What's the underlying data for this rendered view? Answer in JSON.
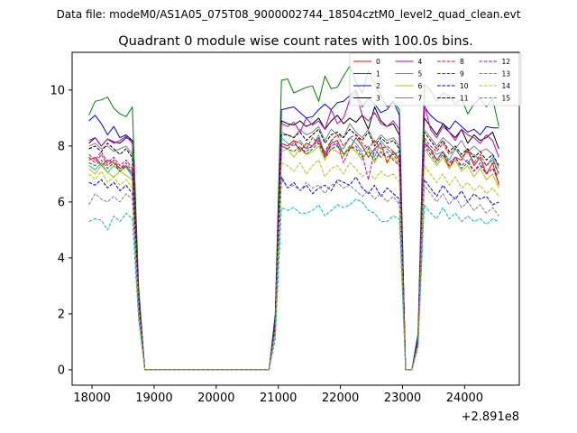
{
  "suptitle": "Data file: modeM0/AS1A05_075T08_9000002744_18504cztM0_level2_quad_clean.evt",
  "chart_data": {
    "type": "line",
    "title": "Quadrant 0 module wise count rates with 100.0s bins.",
    "xlabel": "",
    "ylabel": "",
    "x_offset_label": "+2.891e8",
    "xlim": [
      17680,
      24880
    ],
    "ylim": [
      -0.55,
      11.35
    ],
    "x_ticks": [
      18000,
      19000,
      20000,
      21000,
      22000,
      23000,
      24000
    ],
    "y_ticks": [
      0,
      2,
      4,
      6,
      8,
      10
    ],
    "legend_position": "top-right",
    "legend_columns": 4,
    "x": [
      17950,
      18050,
      18150,
      18250,
      18350,
      18450,
      18550,
      18650,
      18750,
      18850,
      18950,
      19050,
      19150,
      19250,
      19350,
      19450,
      19550,
      19650,
      19750,
      19850,
      19950,
      20050,
      20150,
      20250,
      20350,
      20450,
      20550,
      20650,
      20750,
      20850,
      20950,
      21050,
      21150,
      21250,
      21350,
      21450,
      21550,
      21650,
      21750,
      21850,
      21950,
      22050,
      22150,
      22250,
      22350,
      22450,
      22550,
      22650,
      22750,
      22850,
      22950,
      23050,
      23150,
      23250,
      23350,
      23450,
      23550,
      23650,
      23750,
      23850,
      23950,
      24050,
      24150,
      24250,
      24350,
      24450,
      24550
    ],
    "series": [
      {
        "name": "0",
        "color": "#ff0000",
        "dash": "solid",
        "values": [
          7.5,
          7.6,
          7.3,
          7.5,
          7.4,
          7.2,
          7.3,
          7.0,
          2.4,
          0,
          0,
          0,
          0,
          0,
          0,
          0,
          0,
          0,
          0,
          0,
          0,
          0,
          0,
          0,
          0,
          0,
          0,
          0,
          0,
          0,
          1.6,
          8.1,
          8.0,
          8.2,
          7.8,
          8.1,
          8.0,
          8.3,
          7.6,
          8.1,
          8.2,
          7.7,
          7.9,
          8.3,
          8.0,
          7.6,
          7.9,
          8.1,
          7.4,
          7.8,
          7.5,
          0,
          0,
          1.1,
          8.1,
          7.9,
          7.5,
          7.8,
          7.2,
          7.6,
          7.5,
          7.9,
          7.3,
          7.6,
          7.0,
          7.4,
          6.6
        ]
      },
      {
        "name": "1",
        "color": "#008000",
        "dash": "solid",
        "values": [
          9.1,
          9.6,
          9.65,
          9.75,
          9.35,
          9.15,
          9.05,
          9.4,
          3.0,
          0,
          0,
          0,
          0,
          0,
          0,
          0,
          0,
          0,
          0,
          0,
          0,
          0,
          0,
          0,
          0,
          0,
          0,
          0,
          0,
          0,
          2.0,
          10.35,
          10.4,
          9.9,
          10.0,
          10.1,
          10.15,
          9.6,
          10.5,
          10.05,
          10.1,
          10.5,
          10.85,
          10.3,
          9.9,
          10.7,
          10.2,
          9.8,
          9.4,
          9.6,
          9.3,
          0,
          0,
          1.3,
          10.2,
          10.0,
          9.6,
          9.9,
          9.8,
          9.5,
          9.7,
          9.15,
          9.5,
          9.7,
          9.4,
          9.7,
          8.7
        ]
      },
      {
        "name": "2",
        "color": "#0000ff",
        "dash": "solid",
        "values": [
          8.9,
          9.1,
          8.8,
          8.4,
          8.7,
          8.3,
          8.4,
          8.2,
          2.7,
          0,
          0,
          0,
          0,
          0,
          0,
          0,
          0,
          0,
          0,
          0,
          0,
          0,
          0,
          0,
          0,
          0,
          0,
          0,
          0,
          0,
          1.8,
          9.3,
          9.35,
          9.4,
          9.2,
          9.0,
          9.05,
          9.3,
          9.5,
          9.3,
          9.55,
          9.6,
          9.8,
          10.0,
          9.4,
          9.7,
          9.5,
          9.2,
          9.3,
          9.6,
          9.1,
          0,
          0,
          1.2,
          9.4,
          9.1,
          8.9,
          8.8,
          8.6,
          8.9,
          8.7,
          8.5,
          8.6,
          8.4,
          8.7,
          8.65,
          8.65
        ]
      },
      {
        "name": "3",
        "color": "#000000",
        "dash": "solid",
        "values": [
          8.1,
          8.3,
          8.0,
          8.25,
          8.15,
          8.1,
          8.3,
          8.2,
          2.7,
          0,
          0,
          0,
          0,
          0,
          0,
          0,
          0,
          0,
          0,
          0,
          0,
          0,
          0,
          0,
          0,
          0,
          0,
          0,
          0,
          0,
          1.7,
          8.9,
          8.8,
          8.75,
          8.9,
          8.7,
          8.8,
          9.0,
          8.6,
          8.9,
          9.1,
          8.8,
          9.0,
          8.85,
          9.1,
          8.6,
          9.4,
          8.9,
          8.7,
          8.8,
          8.4,
          0,
          0,
          1.1,
          9.0,
          8.7,
          8.4,
          8.8,
          8.5,
          8.3,
          8.6,
          8.1,
          8.4,
          8.2,
          8.3,
          8.5,
          7.9
        ]
      },
      {
        "name": "4",
        "color": "#bf00bf",
        "dash": "solid",
        "values": [
          8.2,
          8.3,
          8.0,
          8.25,
          8.1,
          8.2,
          8.35,
          8.1,
          2.7,
          0,
          0,
          0,
          0,
          0,
          0,
          0,
          0,
          0,
          0,
          0,
          0,
          0,
          0,
          0,
          0,
          0,
          0,
          0,
          0,
          0,
          1.7,
          8.8,
          8.7,
          8.85,
          8.5,
          9.0,
          8.75,
          8.9,
          8.6,
          9.3,
          8.8,
          9.0,
          9.65,
          9.9,
          9.1,
          8.9,
          9.2,
          8.8,
          8.7,
          8.9,
          8.6,
          0,
          0,
          1.1,
          9.5,
          8.6,
          8.3,
          8.7,
          8.5,
          8.2,
          8.6,
          8.4,
          8.3,
          8.1,
          8.4,
          8.2,
          7.6
        ]
      },
      {
        "name": "5",
        "color": "#00bfbf",
        "dash": "solid",
        "values": [
          7.3,
          7.15,
          7.4,
          7.05,
          7.3,
          7.1,
          7.25,
          6.9,
          2.4,
          0,
          0,
          0,
          0,
          0,
          0,
          0,
          0,
          0,
          0,
          0,
          0,
          0,
          0,
          0,
          0,
          0,
          0,
          0,
          0,
          0,
          1.6,
          8.3,
          8.1,
          8.0,
          8.2,
          7.9,
          8.0,
          8.4,
          7.7,
          8.2,
          8.0,
          7.9,
          8.3,
          8.1,
          7.8,
          8.0,
          7.6,
          8.2,
          7.9,
          7.7,
          7.8,
          0,
          0,
          1.1,
          8.2,
          7.9,
          7.7,
          7.8,
          7.5,
          7.9,
          7.6,
          7.4,
          7.7,
          7.5,
          7.3,
          7.6,
          7.0
        ]
      },
      {
        "name": "6",
        "color": "#bfbf00",
        "dash": "solid",
        "values": [
          7.2,
          7.0,
          7.3,
          7.05,
          6.9,
          7.1,
          6.95,
          6.8,
          2.3,
          0,
          0,
          0,
          0,
          0,
          0,
          0,
          0,
          0,
          0,
          0,
          0,
          0,
          0,
          0,
          0,
          0,
          0,
          0,
          0,
          0,
          1.5,
          7.8,
          7.9,
          7.6,
          7.9,
          7.7,
          7.8,
          8.0,
          7.5,
          7.9,
          7.8,
          7.6,
          8.0,
          7.8,
          7.5,
          7.9,
          7.4,
          7.8,
          7.5,
          7.6,
          7.3,
          0,
          0,
          1.0,
          7.9,
          7.6,
          7.3,
          7.6,
          7.2,
          7.5,
          7.1,
          7.3,
          6.9,
          7.2,
          6.8,
          7.0,
          6.5
        ]
      },
      {
        "name": "7",
        "color": "#808080",
        "dash": "solid",
        "values": [
          8.0,
          8.1,
          7.9,
          8.0,
          7.8,
          7.9,
          8.0,
          7.7,
          2.6,
          0,
          0,
          0,
          0,
          0,
          0,
          0,
          0,
          0,
          0,
          0,
          0,
          0,
          0,
          0,
          0,
          0,
          0,
          0,
          0,
          0,
          1.6,
          8.5,
          8.4,
          8.3,
          8.6,
          8.4,
          8.5,
          8.7,
          8.2,
          8.6,
          8.4,
          8.3,
          8.8,
          8.5,
          8.3,
          8.6,
          8.1,
          8.4,
          8.2,
          8.3,
          8.0,
          0,
          0,
          1.1,
          8.6,
          8.3,
          8.0,
          8.3,
          8.1,
          7.9,
          8.2,
          7.8,
          8.0,
          7.8,
          7.9,
          7.7,
          7.2
        ]
      },
      {
        "name": "8",
        "color": "#ff0000",
        "dash": "dashed",
        "values": [
          7.6,
          7.4,
          7.7,
          7.3,
          7.5,
          7.2,
          7.4,
          7.1,
          2.4,
          0,
          0,
          0,
          0,
          0,
          0,
          0,
          0,
          0,
          0,
          0,
          0,
          0,
          0,
          0,
          0,
          0,
          0,
          0,
          0,
          0,
          1.6,
          8.1,
          8.0,
          8.2,
          8.1,
          7.9,
          8.3,
          8.1,
          7.8,
          8.2,
          8.4,
          8.0,
          8.3,
          8.4,
          8.1,
          7.9,
          8.2,
          7.9,
          8.0,
          7.8,
          7.6,
          0,
          0,
          1.1,
          8.3,
          8.0,
          7.8,
          8.1,
          7.7,
          7.9,
          7.6,
          7.8,
          7.4,
          7.7,
          7.3,
          7.5,
          7.0
        ]
      },
      {
        "name": "9",
        "color": "#008000",
        "dash": "dashed",
        "values": [
          7.4,
          7.3,
          7.5,
          7.2,
          7.4,
          7.1,
          7.3,
          7.0,
          2.4,
          0,
          0,
          0,
          0,
          0,
          0,
          0,
          0,
          0,
          0,
          0,
          0,
          0,
          0,
          0,
          0,
          0,
          0,
          0,
          0,
          0,
          1.5,
          8.0,
          7.9,
          7.8,
          8.0,
          7.7,
          7.9,
          8.1,
          7.6,
          7.9,
          8.0,
          7.7,
          8.0,
          7.9,
          7.6,
          7.8,
          7.5,
          7.8,
          7.6,
          7.7,
          7.4,
          0,
          0,
          1.0,
          8.0,
          7.7,
          7.4,
          7.7,
          7.3,
          7.6,
          7.2,
          7.4,
          7.1,
          7.3,
          7.0,
          7.2,
          6.7
        ]
      },
      {
        "name": "10",
        "color": "#0000ff",
        "dash": "dashed",
        "values": [
          6.7,
          6.6,
          6.8,
          6.5,
          6.7,
          6.4,
          6.6,
          6.3,
          2.2,
          0,
          0,
          0,
          0,
          0,
          0,
          0,
          0,
          0,
          0,
          0,
          0,
          0,
          0,
          0,
          0,
          0,
          0,
          0,
          0,
          0,
          1.4,
          6.9,
          6.5,
          6.7,
          6.4,
          6.6,
          6.3,
          6.5,
          6.6,
          6.4,
          6.8,
          6.7,
          6.6,
          6.9,
          6.5,
          6.3,
          6.6,
          6.2,
          6.5,
          6.3,
          6.1,
          0,
          0,
          0.9,
          6.8,
          6.5,
          6.2,
          6.6,
          6.3,
          6.1,
          6.4,
          6.0,
          6.3,
          6.1,
          6.2,
          5.9,
          6.0
        ]
      },
      {
        "name": "11",
        "color": "#000000",
        "dash": "dashed",
        "values": [
          7.9,
          8.0,
          7.8,
          8.1,
          7.9,
          7.7,
          7.9,
          7.6,
          2.6,
          0,
          0,
          0,
          0,
          0,
          0,
          0,
          0,
          0,
          0,
          0,
          0,
          0,
          0,
          0,
          0,
          0,
          0,
          0,
          0,
          0,
          1.6,
          8.4,
          8.4,
          8.3,
          8.5,
          8.2,
          8.4,
          8.6,
          8.1,
          8.4,
          8.5,
          8.3,
          8.6,
          8.4,
          8.2,
          8.5,
          8.0,
          8.3,
          8.1,
          8.2,
          7.9,
          0,
          0,
          1.1,
          8.5,
          8.2,
          7.9,
          8.2,
          7.8,
          8.0,
          7.7,
          7.9,
          7.6,
          7.8,
          7.5,
          7.7,
          7.3
        ]
      },
      {
        "name": "12",
        "color": "#bf00bf",
        "dash": "dashed",
        "values": [
          7.7,
          7.5,
          7.8,
          7.4,
          7.6,
          7.3,
          7.5,
          7.2,
          2.5,
          0,
          0,
          0,
          0,
          0,
          0,
          0,
          0,
          0,
          0,
          0,
          0,
          0,
          0,
          0,
          0,
          0,
          0,
          0,
          0,
          0,
          1.6,
          8.0,
          7.9,
          8.1,
          7.9,
          7.8,
          8.0,
          8.2,
          7.7,
          8.0,
          8.1,
          7.4,
          7.9,
          8.0,
          7.7,
          6.8,
          7.9,
          7.6,
          7.8,
          7.5,
          7.3,
          0,
          0,
          1.0,
          8.1,
          7.8,
          7.5,
          7.8,
          7.4,
          7.6,
          7.3,
          7.5,
          7.1,
          7.4,
          7.0,
          7.2,
          6.9
        ]
      },
      {
        "name": "13",
        "color": "#00bfbf",
        "dash": "dashed",
        "values": [
          5.3,
          5.4,
          5.35,
          5.0,
          5.5,
          5.3,
          5.6,
          5.4,
          1.8,
          0,
          0,
          0,
          0,
          0,
          0,
          0,
          0,
          0,
          0,
          0,
          0,
          0,
          0,
          0,
          0,
          0,
          0,
          0,
          0,
          0,
          1.1,
          5.8,
          5.7,
          5.8,
          5.6,
          5.6,
          5.7,
          5.9,
          5.5,
          5.7,
          5.9,
          5.8,
          5.9,
          6.1,
          6.0,
          5.7,
          5.6,
          5.3,
          5.3,
          5.5,
          5.4,
          0,
          0,
          0.8,
          5.9,
          5.6,
          5.4,
          5.8,
          5.4,
          5.6,
          5.3,
          5.5,
          5.3,
          5.4,
          5.2,
          5.4,
          5.3
        ]
      },
      {
        "name": "14",
        "color": "#bfbf00",
        "dash": "dashed",
        "values": [
          7.0,
          6.8,
          7.1,
          6.7,
          6.9,
          6.6,
          6.8,
          6.5,
          2.2,
          0,
          0,
          0,
          0,
          0,
          0,
          0,
          0,
          0,
          0,
          0,
          0,
          0,
          0,
          0,
          0,
          0,
          0,
          0,
          0,
          0,
          1.4,
          7.4,
          7.3,
          7.1,
          7.4,
          7.0,
          7.3,
          7.5,
          6.9,
          7.2,
          7.3,
          7.0,
          7.4,
          7.2,
          6.9,
          7.1,
          6.8,
          7.1,
          6.9,
          7.0,
          6.7,
          0,
          0,
          0.9,
          7.3,
          7.0,
          6.7,
          7.0,
          6.6,
          6.9,
          6.5,
          6.7,
          6.4,
          6.6,
          6.3,
          6.5,
          6.2
        ]
      },
      {
        "name": "15",
        "color": "#808080",
        "dash": "dashed",
        "values": [
          5.9,
          6.3,
          6.1,
          6.0,
          6.2,
          6.0,
          6.3,
          6.1,
          2.0,
          0,
          0,
          0,
          0,
          0,
          0,
          0,
          0,
          0,
          0,
          0,
          0,
          0,
          0,
          0,
          0,
          0,
          0,
          0,
          0,
          0,
          1.3,
          6.8,
          6.5,
          6.6,
          6.4,
          6.7,
          6.5,
          6.6,
          6.3,
          6.6,
          6.7,
          6.5,
          6.6,
          6.4,
          6.2,
          6.4,
          6.1,
          6.3,
          6.0,
          6.2,
          5.9,
          0,
          0,
          0.9,
          6.6,
          6.3,
          6.0,
          6.3,
          5.9,
          6.2,
          5.8,
          6.0,
          5.7,
          5.9,
          5.6,
          5.8,
          5.5
        ]
      }
    ]
  }
}
